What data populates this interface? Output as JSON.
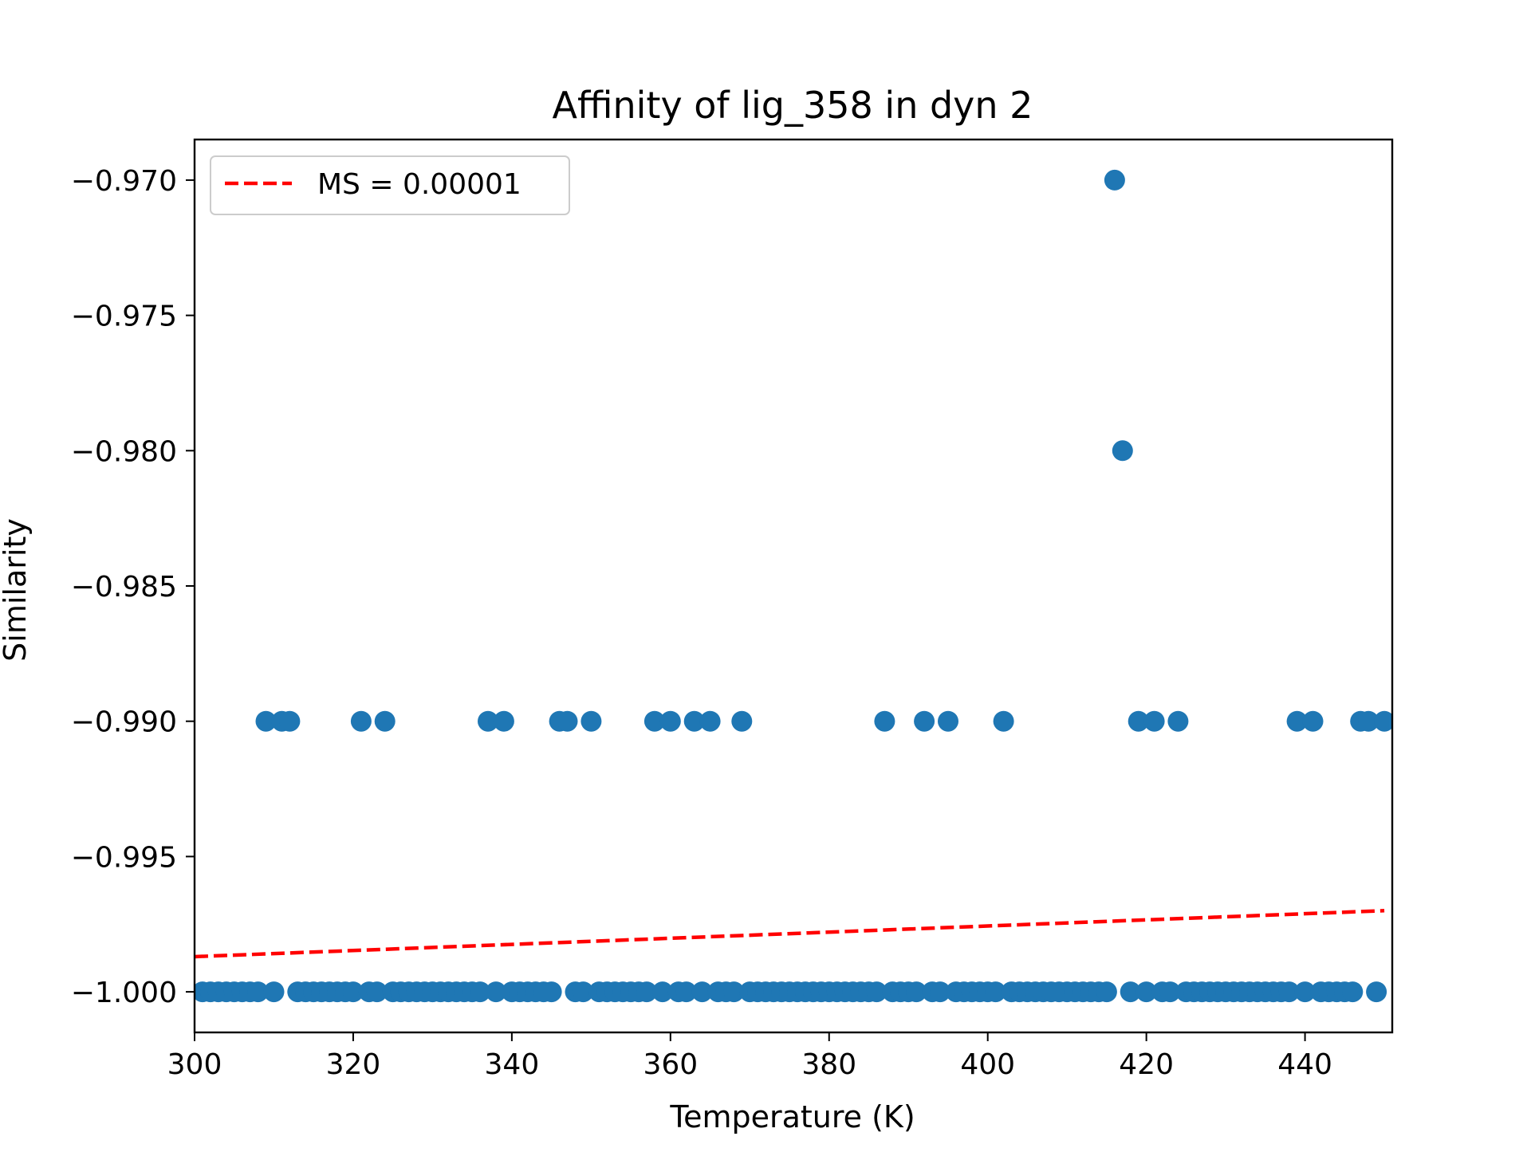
{
  "chart_data": {
    "type": "scatter",
    "title": "Affinity of lig_358 in dyn 2",
    "xlabel": "Temperature (K)",
    "ylabel": "Similarity",
    "xlim": [
      300,
      451
    ],
    "ylim": [
      -1.0015,
      -0.9685
    ],
    "x_ticks": [
      300,
      320,
      340,
      360,
      380,
      400,
      420,
      440
    ],
    "x_tick_labels": [
      "300",
      "320",
      "340",
      "360",
      "380",
      "400",
      "420",
      "440"
    ],
    "y_ticks": [
      -0.97,
      -0.975,
      -0.98,
      -0.985,
      -0.99,
      -0.995,
      -1.0
    ],
    "y_tick_labels": [
      "−0.970",
      "−0.975",
      "−0.980",
      "−0.985",
      "−0.990",
      "−0.995",
      "−1.000"
    ],
    "grid": false,
    "legend_position": "top-left",
    "marker_color": "#1f77b4",
    "series": [
      {
        "values": [
          {
            "x": 416,
            "y": -0.97
          },
          {
            "x": 417,
            "y": -0.98
          },
          {
            "x": 309,
            "y": -0.99
          },
          {
            "x": 311,
            "y": -0.99
          },
          {
            "x": 312,
            "y": -0.99
          },
          {
            "x": 321,
            "y": -0.99
          },
          {
            "x": 324,
            "y": -0.99
          },
          {
            "x": 337,
            "y": -0.99
          },
          {
            "x": 339,
            "y": -0.99
          },
          {
            "x": 346,
            "y": -0.99
          },
          {
            "x": 347,
            "y": -0.99
          },
          {
            "x": 350,
            "y": -0.99
          },
          {
            "x": 358,
            "y": -0.99
          },
          {
            "x": 360,
            "y": -0.99
          },
          {
            "x": 363,
            "y": -0.99
          },
          {
            "x": 365,
            "y": -0.99
          },
          {
            "x": 369,
            "y": -0.99
          },
          {
            "x": 387,
            "y": -0.99
          },
          {
            "x": 392,
            "y": -0.99
          },
          {
            "x": 395,
            "y": -0.99
          },
          {
            "x": 402,
            "y": -0.99
          },
          {
            "x": 419,
            "y": -0.99
          },
          {
            "x": 421,
            "y": -0.99
          },
          {
            "x": 424,
            "y": -0.99
          },
          {
            "x": 439,
            "y": -0.99
          },
          {
            "x": 441,
            "y": -0.99
          },
          {
            "x": 447,
            "y": -0.99
          },
          {
            "x": 448,
            "y": -0.99
          },
          {
            "x": 450,
            "y": -0.99
          },
          {
            "x": 301,
            "y": -1.0
          },
          {
            "x": 302,
            "y": -1.0
          },
          {
            "x": 303,
            "y": -1.0
          },
          {
            "x": 304,
            "y": -1.0
          },
          {
            "x": 305,
            "y": -1.0
          },
          {
            "x": 306,
            "y": -1.0
          },
          {
            "x": 307,
            "y": -1.0
          },
          {
            "x": 308,
            "y": -1.0
          },
          {
            "x": 310,
            "y": -1.0
          },
          {
            "x": 313,
            "y": -1.0
          },
          {
            "x": 314,
            "y": -1.0
          },
          {
            "x": 315,
            "y": -1.0
          },
          {
            "x": 316,
            "y": -1.0
          },
          {
            "x": 317,
            "y": -1.0
          },
          {
            "x": 318,
            "y": -1.0
          },
          {
            "x": 319,
            "y": -1.0
          },
          {
            "x": 320,
            "y": -1.0
          },
          {
            "x": 322,
            "y": -1.0
          },
          {
            "x": 323,
            "y": -1.0
          },
          {
            "x": 325,
            "y": -1.0
          },
          {
            "x": 326,
            "y": -1.0
          },
          {
            "x": 327,
            "y": -1.0
          },
          {
            "x": 328,
            "y": -1.0
          },
          {
            "x": 329,
            "y": -1.0
          },
          {
            "x": 330,
            "y": -1.0
          },
          {
            "x": 331,
            "y": -1.0
          },
          {
            "x": 332,
            "y": -1.0
          },
          {
            "x": 333,
            "y": -1.0
          },
          {
            "x": 334,
            "y": -1.0
          },
          {
            "x": 335,
            "y": -1.0
          },
          {
            "x": 336,
            "y": -1.0
          },
          {
            "x": 338,
            "y": -1.0
          },
          {
            "x": 340,
            "y": -1.0
          },
          {
            "x": 341,
            "y": -1.0
          },
          {
            "x": 342,
            "y": -1.0
          },
          {
            "x": 343,
            "y": -1.0
          },
          {
            "x": 344,
            "y": -1.0
          },
          {
            "x": 345,
            "y": -1.0
          },
          {
            "x": 348,
            "y": -1.0
          },
          {
            "x": 349,
            "y": -1.0
          },
          {
            "x": 351,
            "y": -1.0
          },
          {
            "x": 352,
            "y": -1.0
          },
          {
            "x": 353,
            "y": -1.0
          },
          {
            "x": 354,
            "y": -1.0
          },
          {
            "x": 355,
            "y": -1.0
          },
          {
            "x": 356,
            "y": -1.0
          },
          {
            "x": 357,
            "y": -1.0
          },
          {
            "x": 359,
            "y": -1.0
          },
          {
            "x": 361,
            "y": -1.0
          },
          {
            "x": 362,
            "y": -1.0
          },
          {
            "x": 364,
            "y": -1.0
          },
          {
            "x": 366,
            "y": -1.0
          },
          {
            "x": 367,
            "y": -1.0
          },
          {
            "x": 368,
            "y": -1.0
          },
          {
            "x": 370,
            "y": -1.0
          },
          {
            "x": 371,
            "y": -1.0
          },
          {
            "x": 372,
            "y": -1.0
          },
          {
            "x": 373,
            "y": -1.0
          },
          {
            "x": 374,
            "y": -1.0
          },
          {
            "x": 375,
            "y": -1.0
          },
          {
            "x": 376,
            "y": -1.0
          },
          {
            "x": 377,
            "y": -1.0
          },
          {
            "x": 378,
            "y": -1.0
          },
          {
            "x": 379,
            "y": -1.0
          },
          {
            "x": 380,
            "y": -1.0
          },
          {
            "x": 381,
            "y": -1.0
          },
          {
            "x": 382,
            "y": -1.0
          },
          {
            "x": 383,
            "y": -1.0
          },
          {
            "x": 384,
            "y": -1.0
          },
          {
            "x": 385,
            "y": -1.0
          },
          {
            "x": 386,
            "y": -1.0
          },
          {
            "x": 388,
            "y": -1.0
          },
          {
            "x": 389,
            "y": -1.0
          },
          {
            "x": 390,
            "y": -1.0
          },
          {
            "x": 391,
            "y": -1.0
          },
          {
            "x": 393,
            "y": -1.0
          },
          {
            "x": 394,
            "y": -1.0
          },
          {
            "x": 396,
            "y": -1.0
          },
          {
            "x": 397,
            "y": -1.0
          },
          {
            "x": 398,
            "y": -1.0
          },
          {
            "x": 399,
            "y": -1.0
          },
          {
            "x": 400,
            "y": -1.0
          },
          {
            "x": 401,
            "y": -1.0
          },
          {
            "x": 403,
            "y": -1.0
          },
          {
            "x": 404,
            "y": -1.0
          },
          {
            "x": 405,
            "y": -1.0
          },
          {
            "x": 406,
            "y": -1.0
          },
          {
            "x": 407,
            "y": -1.0
          },
          {
            "x": 408,
            "y": -1.0
          },
          {
            "x": 409,
            "y": -1.0
          },
          {
            "x": 410,
            "y": -1.0
          },
          {
            "x": 411,
            "y": -1.0
          },
          {
            "x": 412,
            "y": -1.0
          },
          {
            "x": 413,
            "y": -1.0
          },
          {
            "x": 414,
            "y": -1.0
          },
          {
            "x": 415,
            "y": -1.0
          },
          {
            "x": 418,
            "y": -1.0
          },
          {
            "x": 420,
            "y": -1.0
          },
          {
            "x": 422,
            "y": -1.0
          },
          {
            "x": 423,
            "y": -1.0
          },
          {
            "x": 425,
            "y": -1.0
          },
          {
            "x": 426,
            "y": -1.0
          },
          {
            "x": 427,
            "y": -1.0
          },
          {
            "x": 428,
            "y": -1.0
          },
          {
            "x": 429,
            "y": -1.0
          },
          {
            "x": 430,
            "y": -1.0
          },
          {
            "x": 431,
            "y": -1.0
          },
          {
            "x": 432,
            "y": -1.0
          },
          {
            "x": 433,
            "y": -1.0
          },
          {
            "x": 434,
            "y": -1.0
          },
          {
            "x": 435,
            "y": -1.0
          },
          {
            "x": 436,
            "y": -1.0
          },
          {
            "x": 437,
            "y": -1.0
          },
          {
            "x": 438,
            "y": -1.0
          },
          {
            "x": 440,
            "y": -1.0
          },
          {
            "x": 442,
            "y": -1.0
          },
          {
            "x": 443,
            "y": -1.0
          },
          {
            "x": 444,
            "y": -1.0
          },
          {
            "x": 445,
            "y": -1.0
          },
          {
            "x": 446,
            "y": -1.0
          },
          {
            "x": 449,
            "y": -1.0
          }
        ]
      }
    ],
    "lines": [
      {
        "name": "MS = 0.00001",
        "color": "#ff0000",
        "style": "dashed",
        "x": [
          300,
          450
        ],
        "y": [
          -0.9987,
          -0.997
        ]
      }
    ]
  }
}
